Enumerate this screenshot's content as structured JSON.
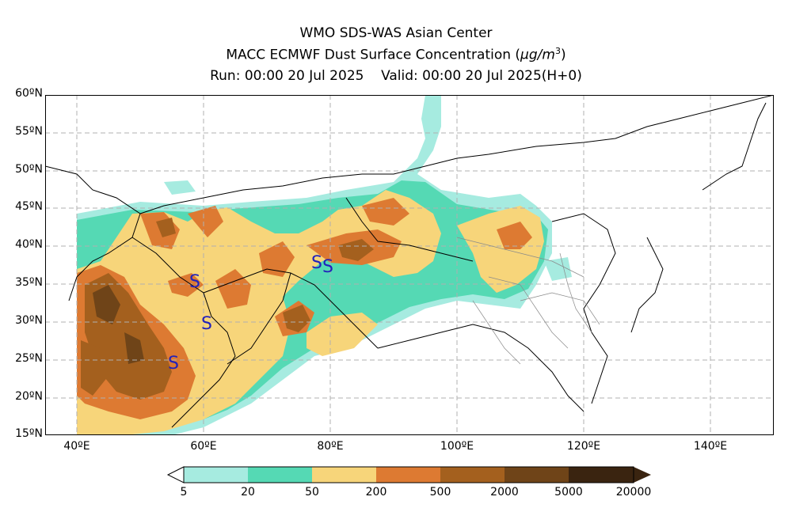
{
  "title": {
    "line1": "WMO SDS-WAS Asian Center",
    "line2_prefix": "MACC ECMWF Dust Surface Concentration (",
    "line2_mu": "μ",
    "line2_unit": "g/m",
    "line2_exp": "3",
    "line2_suffix": ")",
    "line3": "Run: 00:00 20 Jul 2025    Valid: 00:00 20 Jul 2025(H+0)"
  },
  "lat_labels": [
    "60ºN",
    "55ºN",
    "50ºN",
    "45ºN",
    "40ºN",
    "35ºN",
    "30ºN",
    "25ºN",
    "20ºN",
    "15ºN"
  ],
  "lon_labels": [
    "40ºE",
    "60ºE",
    "80ºE",
    "100ºE",
    "120ºE",
    "140ºE"
  ],
  "colorbar": {
    "labels": [
      "5",
      "20",
      "50",
      "200",
      "500",
      "2000",
      "5000",
      "20000"
    ],
    "colors": [
      "#a6ebe0",
      "#55d9b4",
      "#f7d57a",
      "#dd7a32",
      "#a4601e",
      "#6f4418",
      "#3a2410"
    ]
  },
  "map": {
    "extent": {
      "lon": [
        35,
        150
      ],
      "lat": [
        15,
        60
      ]
    },
    "grid": "dashed",
    "storm_symbol": "S",
    "storm_symbol_color": "#2222bb"
  }
}
